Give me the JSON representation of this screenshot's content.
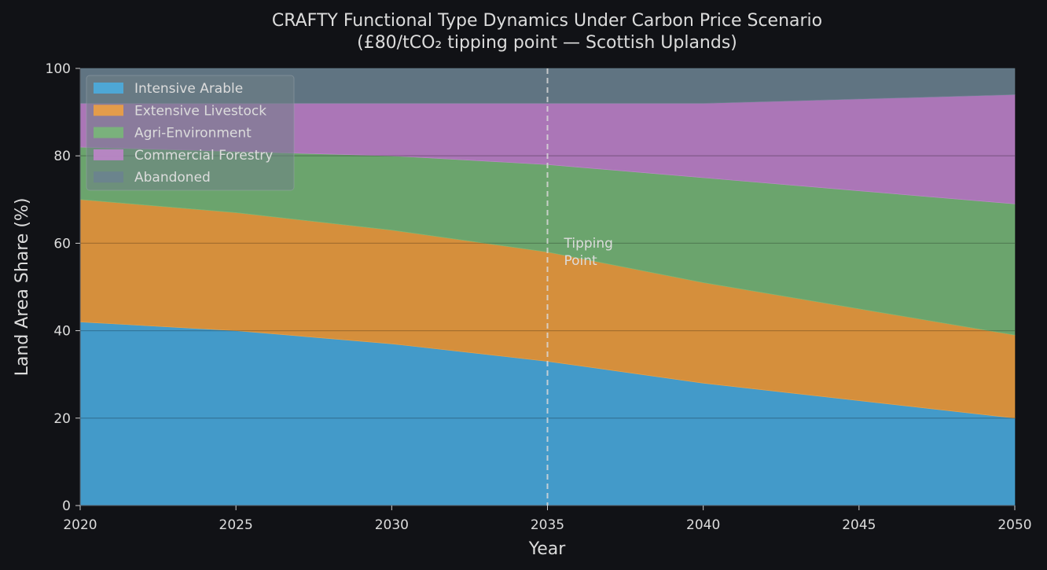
{
  "chart_data": {
    "type": "area",
    "stacked": true,
    "title": "CRAFTY Functional Type Dynamics Under Carbon Price Scenario",
    "subtitle": "(£80/tCO₂ tipping point — Scottish Uplands)",
    "xlabel": "Year",
    "ylabel": "Land Area Share (%)",
    "xlim": [
      2020,
      2050
    ],
    "ylim": [
      0,
      100
    ],
    "xticks": [
      2020,
      2025,
      2030,
      2035,
      2040,
      2045,
      2050
    ],
    "yticks": [
      0,
      20,
      40,
      60,
      80,
      100
    ],
    "grid": "horizontal",
    "legend_position": "top-left",
    "x": [
      2020,
      2025,
      2030,
      2035,
      2040,
      2045,
      2050
    ],
    "series": [
      {
        "name": "Intensive Arable",
        "color": "#4aade0",
        "values": [
          42,
          40,
          37,
          33,
          28,
          24,
          20
        ]
      },
      {
        "name": "Extensive Livestock",
        "color": "#f0a040",
        "values": [
          28,
          27,
          26,
          25,
          23,
          21,
          19
        ]
      },
      {
        "name": "Agri-Environment",
        "color": "#78b878",
        "values": [
          12,
          14,
          17,
          20,
          24,
          27,
          30
        ]
      },
      {
        "name": "Commercial Forestry",
        "color": "#c084cc",
        "values": [
          10,
          11,
          12,
          14,
          17,
          21,
          25
        ]
      },
      {
        "name": "Abandoned",
        "color": "#6b8290",
        "values": [
          8,
          8,
          8,
          8,
          8,
          7,
          6
        ]
      }
    ],
    "annotations": [
      {
        "x": 2035,
        "type": "vline",
        "label": "Tipping\nPoint"
      }
    ]
  },
  "colors": {
    "background": "#111216",
    "plot_background": "#141720",
    "text": "#dcdcdc",
    "annotation_line": "#d8d8d8"
  }
}
